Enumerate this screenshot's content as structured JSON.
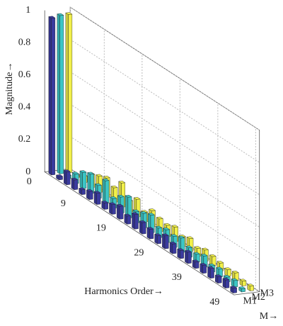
{
  "chart_data": {
    "type": "bar3d",
    "ylabel": "Magnitude→",
    "xlabel": "Harmonics Order→",
    "zlabel": "M→",
    "x": [
      1,
      3,
      5,
      7,
      9,
      11,
      13,
      15,
      17,
      19,
      21,
      23,
      25,
      27,
      29,
      31,
      33,
      35,
      37,
      39,
      41,
      43,
      45,
      47,
      49
    ],
    "series": [
      {
        "name": "M1",
        "color": "#3a3a9e",
        "values": [
          0.97,
          0.02,
          0.08,
          0.06,
          0.03,
          0.05,
          0.07,
          0.04,
          0.06,
          0.08,
          0.05,
          0.09,
          0.07,
          0.06,
          0.05,
          0.08,
          0.06,
          0.05,
          0.07,
          0.04,
          0.05,
          0.06,
          0.04,
          0.05,
          0.03
        ]
      },
      {
        "name": "M2",
        "color": "#3cc6c6",
        "values": [
          0.98,
          0.02,
          0.06,
          0.1,
          0.12,
          0.08,
          0.14,
          0.06,
          0.1,
          0.13,
          0.07,
          0.09,
          0.11,
          0.06,
          0.08,
          0.07,
          0.09,
          0.06,
          0.05,
          0.07,
          0.04,
          0.05,
          0.03,
          0.04,
          0.02
        ]
      },
      {
        "name": "M3",
        "color": "#f2f04a",
        "values": [
          0.98,
          0.01,
          0.04,
          0.08,
          0.1,
          0.12,
          0.09,
          0.15,
          0.07,
          0.11,
          0.06,
          0.1,
          0.08,
          0.07,
          0.09,
          0.06,
          0.08,
          0.05,
          0.07,
          0.06,
          0.05,
          0.04,
          0.05,
          0.03,
          0.03
        ]
      }
    ],
    "xlim": [
      0,
      50
    ],
    "xticks": [
      0,
      9,
      19,
      29,
      39,
      49
    ],
    "ylim": [
      0,
      1
    ],
    "yticks": [
      0,
      0.2,
      0.4,
      0.6,
      0.8,
      1
    ],
    "grid": true
  }
}
